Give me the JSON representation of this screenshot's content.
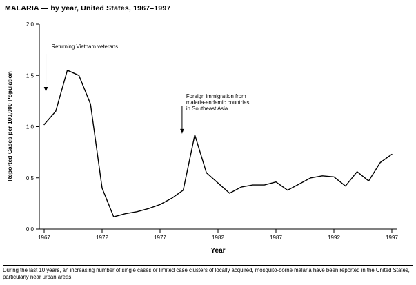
{
  "title": "MALARIA — by year, United States, 1967–1997",
  "footnote": "During the last 10 years, an increasing number of single cases or limited case clusters of locally acquired, mosquito-borne malaria have been reported in the United States, particularly near urban areas.",
  "chart_data": {
    "type": "line",
    "title": "MALARIA — by year, United States, 1967–1997",
    "xlabel": "Year",
    "ylabel": "Reported Cases per 100,000 Population",
    "x_range": [
      1967,
      1997
    ],
    "ylim": [
      0,
      2
    ],
    "xticks": [
      1967,
      1972,
      1977,
      1982,
      1987,
      1992,
      1997
    ],
    "yticks": [
      0,
      0.5,
      1,
      1.5,
      2
    ],
    "ytick_labels": [
      "0.0",
      "0.5",
      "1.0",
      "1.5",
      "2.0"
    ],
    "grid": "off",
    "line_color": "#000000",
    "years": [
      1967,
      1968,
      1969,
      1970,
      1971,
      1972,
      1973,
      1974,
      1975,
      1976,
      1977,
      1978,
      1979,
      1980,
      1981,
      1982,
      1983,
      1984,
      1985,
      1986,
      1987,
      1988,
      1989,
      1990,
      1991,
      1992,
      1993,
      1994,
      1995,
      1996,
      1997
    ],
    "values": [
      1.02,
      1.15,
      1.55,
      1.5,
      1.22,
      0.4,
      0.12,
      0.15,
      0.17,
      0.2,
      0.24,
      0.3,
      0.38,
      0.92,
      0.55,
      0.45,
      0.35,
      0.41,
      0.43,
      0.43,
      0.46,
      0.38,
      0.44,
      0.5,
      0.52,
      0.51,
      0.42,
      0.56,
      0.47,
      0.65,
      0.73
    ],
    "annotations": [
      {
        "lines": [
          "Returning Vietnam veterans"
        ],
        "year": 1967.15,
        "value": 1.34,
        "arrow_len": 55,
        "text_dx": 8,
        "text_dy": -63
      },
      {
        "lines": [
          "Foreign immigration from",
          "malaria-endemic countries",
          "in Southeast Asia"
        ],
        "year": 1978.9,
        "value": 0.93,
        "arrow_len": 40,
        "text_dx": 6,
        "text_dy": -52
      }
    ]
  }
}
